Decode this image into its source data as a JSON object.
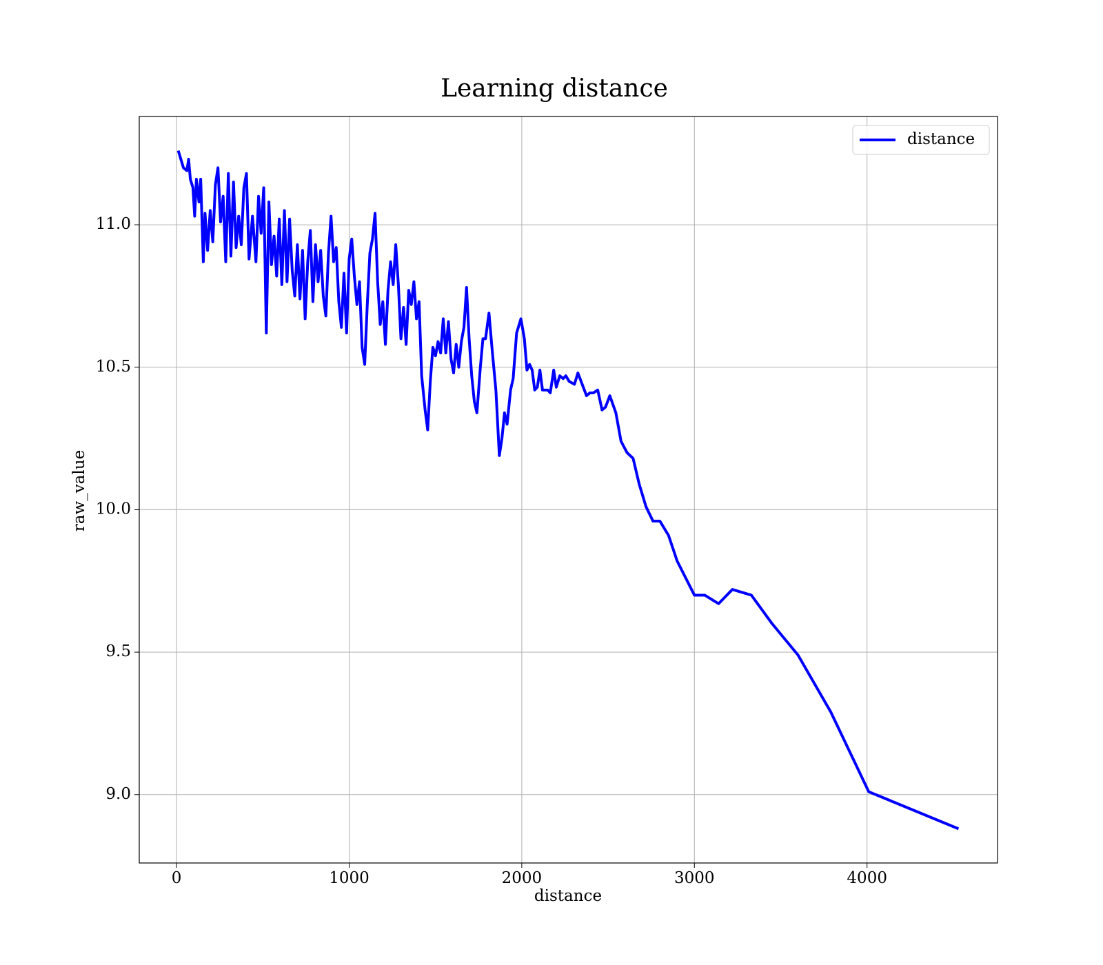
{
  "chart_data": {
    "type": "line",
    "title": "Learning distance",
    "x_label": "distance",
    "y_label": "raw_value",
    "x": [
      10,
      40,
      60,
      70,
      80,
      95,
      105,
      115,
      130,
      140,
      155,
      165,
      180,
      195,
      210,
      225,
      240,
      255,
      270,
      285,
      300,
      315,
      330,
      345,
      360,
      375,
      390,
      405,
      420,
      440,
      460,
      475,
      490,
      505,
      520,
      535,
      550,
      565,
      580,
      595,
      610,
      625,
      640,
      655,
      670,
      685,
      700,
      715,
      730,
      745,
      760,
      775,
      790,
      805,
      820,
      835,
      850,
      865,
      880,
      895,
      910,
      925,
      940,
      955,
      970,
      985,
      1000,
      1015,
      1030,
      1045,
      1060,
      1075,
      1090,
      1105,
      1120,
      1135,
      1150,
      1165,
      1180,
      1195,
      1210,
      1225,
      1240,
      1255,
      1270,
      1285,
      1300,
      1315,
      1330,
      1345,
      1360,
      1375,
      1390,
      1405,
      1420,
      1440,
      1455,
      1470,
      1485,
      1500,
      1515,
      1530,
      1545,
      1560,
      1575,
      1590,
      1605,
      1620,
      1635,
      1650,
      1665,
      1680,
      1695,
      1710,
      1725,
      1740,
      1760,
      1775,
      1790,
      1810,
      1830,
      1850,
      1870,
      1885,
      1900,
      1915,
      1935,
      1950,
      1970,
      1995,
      2015,
      2030,
      2045,
      2060,
      2075,
      2090,
      2105,
      2120,
      2150,
      2165,
      2185,
      2200,
      2220,
      2240,
      2255,
      2275,
      2305,
      2325,
      2350,
      2375,
      2395,
      2415,
      2440,
      2465,
      2485,
      2510,
      2545,
      2575,
      2610,
      2645,
      2680,
      2720,
      2760,
      2800,
      2850,
      2900,
      3000,
      3060,
      3140,
      3220,
      3330,
      3450,
      3600,
      3790,
      4010,
      4530
    ],
    "series": [
      {
        "name": "distance",
        "color": "#0000ff",
        "values": [
          11.26,
          11.2,
          11.19,
          11.23,
          11.16,
          11.13,
          11.03,
          11.16,
          11.08,
          11.16,
          10.87,
          11.04,
          10.91,
          11.05,
          10.94,
          11.14,
          11.2,
          11.01,
          11.1,
          10.87,
          11.18,
          10.89,
          11.15,
          10.92,
          11.03,
          10.93,
          11.13,
          11.18,
          10.88,
          11.03,
          10.87,
          11.1,
          10.97,
          11.13,
          10.62,
          11.08,
          10.86,
          10.96,
          10.82,
          11.02,
          10.79,
          11.05,
          10.8,
          11.02,
          10.84,
          10.75,
          10.93,
          10.74,
          10.91,
          10.67,
          10.87,
          10.98,
          10.73,
          10.93,
          10.8,
          10.91,
          10.75,
          10.68,
          10.9,
          11.03,
          10.87,
          10.92,
          10.73,
          10.64,
          10.83,
          10.62,
          10.88,
          10.95,
          10.82,
          10.72,
          10.8,
          10.57,
          10.51,
          10.72,
          10.9,
          10.95,
          11.04,
          10.8,
          10.65,
          10.73,
          10.58,
          10.77,
          10.87,
          10.79,
          10.93,
          10.79,
          10.6,
          10.71,
          10.58,
          10.77,
          10.72,
          10.8,
          10.67,
          10.73,
          10.47,
          10.35,
          10.28,
          10.45,
          10.57,
          10.54,
          10.59,
          10.55,
          10.67,
          10.55,
          10.66,
          10.53,
          10.48,
          10.58,
          10.5,
          10.59,
          10.64,
          10.78,
          10.6,
          10.47,
          10.38,
          10.34,
          10.5,
          10.6,
          10.6,
          10.69,
          10.55,
          10.42,
          10.19,
          10.25,
          10.34,
          10.3,
          10.42,
          10.46,
          10.62,
          10.67,
          10.6,
          10.49,
          10.51,
          10.49,
          10.42,
          10.43,
          10.49,
          10.42,
          10.42,
          10.41,
          10.49,
          10.43,
          10.47,
          10.46,
          10.47,
          10.45,
          10.44,
          10.48,
          10.44,
          10.4,
          10.41,
          10.41,
          10.42,
          10.35,
          10.36,
          10.4,
          10.34,
          10.24,
          10.2,
          10.18,
          10.09,
          10.01,
          9.96,
          9.96,
          9.91,
          9.82,
          9.7,
          9.7,
          9.67,
          9.72,
          9.7,
          9.6,
          9.49,
          9.29,
          9.01,
          8.88
        ]
      }
    ],
    "xlim": [
      -216,
      4756
    ],
    "ylim": [
      8.76,
      11.38
    ],
    "xticks": [
      0,
      1000,
      2000,
      3000,
      4000
    ],
    "yticks": [
      {
        "value": 9,
        "label": "9.0"
      },
      9.5,
      {
        "value": 10,
        "label": "10.0"
      },
      10.5,
      {
        "value": 11,
        "label": "11.0"
      }
    ],
    "grid": true,
    "legend": "upper right"
  }
}
